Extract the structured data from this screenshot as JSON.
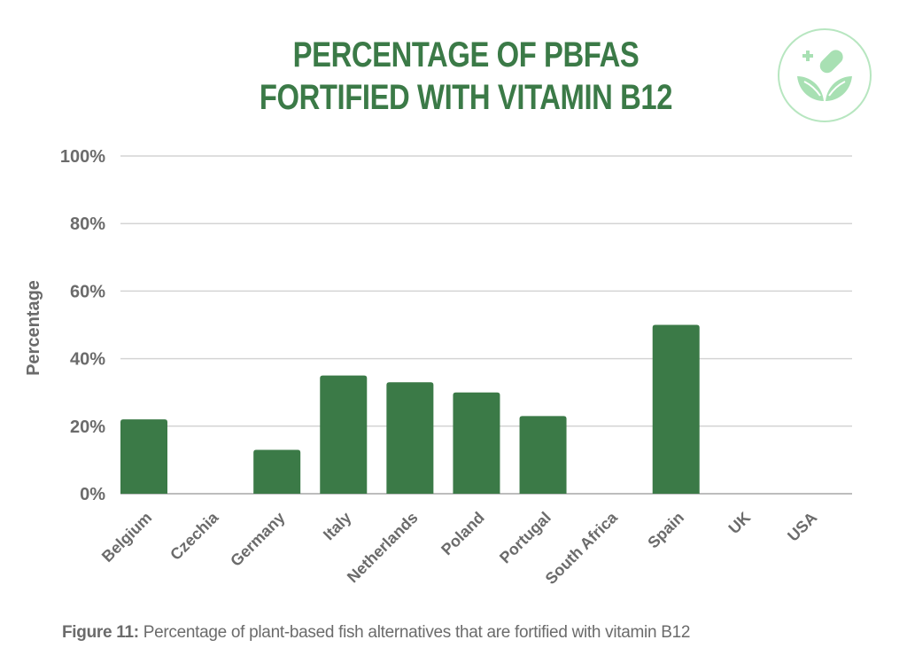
{
  "chart_data": {
    "type": "bar",
    "title": "PERCENTAGE OF PBFAS FORTIFIED WITH VITAMIN B12",
    "title_lines": [
      "PERCENTAGE OF PBFAS",
      "FORTIFIED WITH VITAMIN B12"
    ],
    "xlabel": "",
    "ylabel": "Percentage",
    "categories": [
      "Belgium",
      "Czechia",
      "Germany",
      "Italy",
      "Netherlands",
      "Poland",
      "Portugal",
      "South Africa",
      "Spain",
      "UK",
      "USA"
    ],
    "values": [
      22,
      0,
      13,
      35,
      33,
      30,
      23,
      0,
      50,
      0,
      0
    ],
    "ylim": [
      0,
      100
    ],
    "yticks": [
      0,
      20,
      40,
      60,
      80,
      100
    ],
    "ytick_labels": [
      "0%",
      "20%",
      "40%",
      "60%",
      "80%",
      "100%"
    ],
    "grid": true,
    "legend": "none",
    "bar_color": "#3b7a47"
  },
  "caption": {
    "label": "Figure 11:",
    "text": " Percentage of plant-based fish alternatives that are fortified with vitamin B12"
  },
  "badge": {
    "icon": "plant-capsule-icon",
    "color": "#a8e0b3"
  },
  "colors": {
    "title": "#3b7a47",
    "axis_text": "#6b6b6b",
    "grid": "#cfcfcf"
  }
}
